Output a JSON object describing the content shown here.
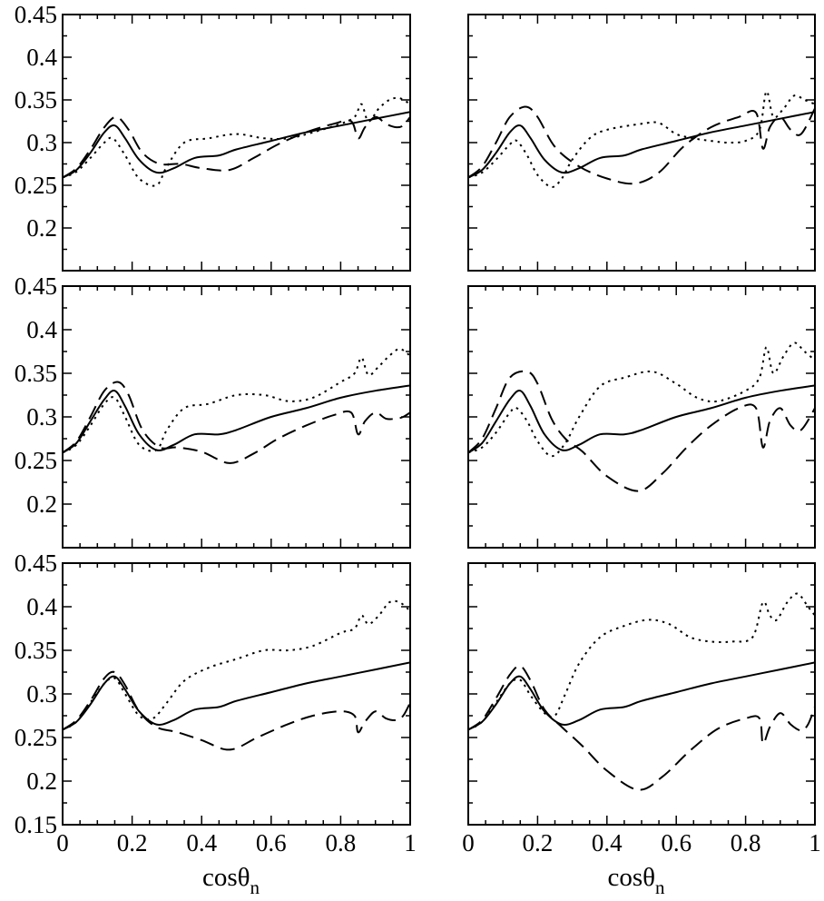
{
  "chart_data": {
    "type": "line",
    "layout": "3 rows x 2 columns",
    "xlabel": "cosθ",
    "xlabel_subscript": "n",
    "ylabel": "",
    "xlim": [
      0,
      1
    ],
    "ylim": [
      0.15,
      0.45
    ],
    "x_ticks": [
      0,
      0.2,
      0.4,
      0.6,
      0.8,
      1
    ],
    "x_tick_labels": [
      "0",
      "0.2",
      "0.4",
      "0.6",
      "0.8",
      "1"
    ],
    "y_ticks": [
      0.15,
      0.2,
      0.25,
      0.3,
      0.35,
      0.4,
      0.45
    ],
    "y_tick_labels": [
      "0.15",
      "0.2",
      "0.25",
      "0.3",
      "0.35",
      "0.4",
      "0.45"
    ],
    "line_styles": [
      "solid",
      "dashed",
      "dotted"
    ],
    "grid": false,
    "legend": "none",
    "panels": [
      {
        "series": [
          {
            "style": "solid",
            "x": [
              0,
              0.04,
              0.08,
              0.12,
              0.15,
              0.18,
              0.22,
              0.27,
              0.32,
              0.38,
              0.45,
              0.5,
              0.6,
              0.7,
              0.8,
              0.9,
              1.0
            ],
            "y": [
              0.259,
              0.268,
              0.288,
              0.312,
              0.32,
              0.305,
              0.28,
              0.265,
              0.27,
              0.282,
              0.285,
              0.292,
              0.302,
              0.312,
              0.32,
              0.328,
              0.336
            ]
          },
          {
            "style": "dashed",
            "x": [
              0,
              0.04,
              0.08,
              0.12,
              0.155,
              0.19,
              0.23,
              0.28,
              0.34,
              0.4,
              0.48,
              0.55,
              0.62,
              0.7,
              0.78,
              0.83,
              0.85,
              0.87,
              0.9,
              0.93,
              0.96,
              0.98,
              1.0
            ],
            "y": [
              0.259,
              0.27,
              0.292,
              0.318,
              0.33,
              0.315,
              0.288,
              0.275,
              0.275,
              0.27,
              0.268,
              0.282,
              0.298,
              0.312,
              0.322,
              0.325,
              0.305,
              0.318,
              0.33,
              0.322,
              0.318,
              0.32,
              0.33
            ]
          },
          {
            "style": "dotted",
            "x": [
              0,
              0.04,
              0.08,
              0.12,
              0.145,
              0.18,
              0.22,
              0.27,
              0.3,
              0.35,
              0.42,
              0.5,
              0.58,
              0.65,
              0.72,
              0.8,
              0.84,
              0.86,
              0.88,
              0.91,
              0.94,
              0.97,
              1.0
            ],
            "y": [
              0.259,
              0.266,
              0.282,
              0.3,
              0.305,
              0.285,
              0.258,
              0.25,
              0.272,
              0.3,
              0.305,
              0.31,
              0.305,
              0.305,
              0.312,
              0.322,
              0.33,
              0.345,
              0.325,
              0.34,
              0.35,
              0.352,
              0.345
            ]
          }
        ]
      },
      {
        "series": [
          {
            "style": "solid",
            "x": [
              0,
              0.04,
              0.08,
              0.12,
              0.15,
              0.18,
              0.22,
              0.27,
              0.32,
              0.38,
              0.45,
              0.5,
              0.6,
              0.7,
              0.8,
              0.9,
              1.0
            ],
            "y": [
              0.259,
              0.268,
              0.288,
              0.312,
              0.32,
              0.305,
              0.28,
              0.265,
              0.27,
              0.282,
              0.285,
              0.292,
              0.302,
              0.312,
              0.32,
              0.328,
              0.336
            ]
          },
          {
            "style": "dashed",
            "x": [
              0,
              0.04,
              0.08,
              0.12,
              0.165,
              0.2,
              0.25,
              0.32,
              0.4,
              0.48,
              0.55,
              0.62,
              0.7,
              0.78,
              0.83,
              0.85,
              0.87,
              0.9,
              0.93,
              0.96,
              1.0
            ],
            "y": [
              0.259,
              0.272,
              0.3,
              0.33,
              0.342,
              0.33,
              0.295,
              0.272,
              0.258,
              0.252,
              0.265,
              0.295,
              0.318,
              0.33,
              0.335,
              0.293,
              0.318,
              0.33,
              0.315,
              0.31,
              0.34
            ]
          },
          {
            "style": "dotted",
            "x": [
              0,
              0.04,
              0.08,
              0.12,
              0.14,
              0.17,
              0.2,
              0.24,
              0.27,
              0.3,
              0.35,
              0.4,
              0.5,
              0.55,
              0.6,
              0.65,
              0.7,
              0.75,
              0.8,
              0.84,
              0.86,
              0.88,
              0.91,
              0.94,
              0.97,
              1.0
            ],
            "y": [
              0.259,
              0.265,
              0.28,
              0.298,
              0.302,
              0.285,
              0.262,
              0.248,
              0.258,
              0.28,
              0.305,
              0.315,
              0.322,
              0.323,
              0.31,
              0.305,
              0.302,
              0.3,
              0.302,
              0.315,
              0.36,
              0.33,
              0.34,
              0.355,
              0.35,
              0.345
            ]
          }
        ]
      },
      {
        "series": [
          {
            "style": "solid",
            "x": [
              0,
              0.04,
              0.08,
              0.12,
              0.15,
              0.18,
              0.22,
              0.27,
              0.32,
              0.38,
              0.45,
              0.5,
              0.6,
              0.7,
              0.8,
              0.9,
              1.0
            ],
            "y": [
              0.259,
              0.27,
              0.295,
              0.32,
              0.33,
              0.312,
              0.28,
              0.262,
              0.268,
              0.28,
              0.28,
              0.285,
              0.3,
              0.31,
              0.322,
              0.33,
              0.336
            ]
          },
          {
            "style": "dashed",
            "x": [
              0,
              0.04,
              0.08,
              0.12,
              0.16,
              0.19,
              0.23,
              0.28,
              0.33,
              0.4,
              0.48,
              0.55,
              0.62,
              0.7,
              0.78,
              0.83,
              0.85,
              0.87,
              0.9,
              0.93,
              0.96,
              0.98,
              1.0
            ],
            "y": [
              0.259,
              0.272,
              0.3,
              0.33,
              0.34,
              0.325,
              0.285,
              0.265,
              0.265,
              0.26,
              0.247,
              0.258,
              0.275,
              0.29,
              0.302,
              0.305,
              0.28,
              0.295,
              0.305,
              0.298,
              0.298,
              0.3,
              0.305
            ]
          },
          {
            "style": "dotted",
            "x": [
              0,
              0.04,
              0.08,
              0.12,
              0.15,
              0.18,
              0.22,
              0.27,
              0.3,
              0.35,
              0.42,
              0.5,
              0.58,
              0.65,
              0.72,
              0.8,
              0.84,
              0.86,
              0.88,
              0.91,
              0.94,
              0.97,
              1.0
            ],
            "y": [
              0.259,
              0.268,
              0.29,
              0.315,
              0.322,
              0.3,
              0.268,
              0.262,
              0.285,
              0.31,
              0.315,
              0.325,
              0.325,
              0.318,
              0.322,
              0.34,
              0.35,
              0.368,
              0.348,
              0.358,
              0.37,
              0.378,
              0.37
            ]
          }
        ]
      },
      {
        "series": [
          {
            "style": "solid",
            "x": [
              0,
              0.04,
              0.08,
              0.12,
              0.15,
              0.18,
              0.22,
              0.27,
              0.32,
              0.38,
              0.45,
              0.5,
              0.6,
              0.7,
              0.8,
              0.9,
              1.0
            ],
            "y": [
              0.259,
              0.27,
              0.295,
              0.32,
              0.33,
              0.312,
              0.28,
              0.262,
              0.268,
              0.28,
              0.28,
              0.285,
              0.3,
              0.31,
              0.322,
              0.33,
              0.336
            ]
          },
          {
            "style": "dashed",
            "x": [
              0,
              0.04,
              0.08,
              0.12,
              0.17,
              0.2,
              0.24,
              0.28,
              0.33,
              0.4,
              0.49,
              0.56,
              0.63,
              0.7,
              0.78,
              0.83,
              0.85,
              0.87,
              0.9,
              0.93,
              0.96,
              1.0
            ],
            "y": [
              0.259,
              0.275,
              0.31,
              0.345,
              0.352,
              0.338,
              0.298,
              0.275,
              0.26,
              0.232,
              0.215,
              0.235,
              0.265,
              0.29,
              0.31,
              0.31,
              0.265,
              0.295,
              0.31,
              0.29,
              0.285,
              0.31
            ]
          },
          {
            "style": "dotted",
            "x": [
              0,
              0.04,
              0.08,
              0.12,
              0.14,
              0.17,
              0.2,
              0.24,
              0.28,
              0.32,
              0.38,
              0.45,
              0.53,
              0.6,
              0.66,
              0.72,
              0.8,
              0.84,
              0.86,
              0.88,
              0.91,
              0.94,
              0.97,
              1.0
            ],
            "y": [
              0.259,
              0.265,
              0.282,
              0.305,
              0.31,
              0.295,
              0.272,
              0.255,
              0.27,
              0.3,
              0.335,
              0.345,
              0.352,
              0.338,
              0.322,
              0.318,
              0.33,
              0.345,
              0.38,
              0.35,
              0.37,
              0.385,
              0.375,
              0.365
            ]
          }
        ]
      },
      {
        "series": [
          {
            "style": "solid",
            "x": [
              0,
              0.04,
              0.08,
              0.12,
              0.15,
              0.18,
              0.22,
              0.27,
              0.32,
              0.38,
              0.45,
              0.5,
              0.6,
              0.7,
              0.8,
              0.9,
              1.0
            ],
            "y": [
              0.259,
              0.268,
              0.288,
              0.312,
              0.32,
              0.305,
              0.28,
              0.265,
              0.27,
              0.282,
              0.285,
              0.292,
              0.302,
              0.312,
              0.32,
              0.328,
              0.336
            ]
          },
          {
            "style": "dashed",
            "x": [
              0,
              0.04,
              0.08,
              0.12,
              0.15,
              0.18,
              0.22,
              0.27,
              0.33,
              0.4,
              0.48,
              0.56,
              0.64,
              0.72,
              0.8,
              0.84,
              0.85,
              0.87,
              0.9,
              0.93,
              0.96,
              0.98,
              1.0
            ],
            "y": [
              0.259,
              0.27,
              0.292,
              0.318,
              0.325,
              0.31,
              0.28,
              0.262,
              0.256,
              0.247,
              0.236,
              0.25,
              0.264,
              0.275,
              0.28,
              0.275,
              0.256,
              0.268,
              0.28,
              0.272,
              0.27,
              0.275,
              0.29
            ]
          },
          {
            "style": "dotted",
            "x": [
              0,
              0.04,
              0.08,
              0.12,
              0.15,
              0.18,
              0.22,
              0.26,
              0.3,
              0.35,
              0.42,
              0.5,
              0.58,
              0.65,
              0.72,
              0.8,
              0.84,
              0.86,
              0.88,
              0.91,
              0.94,
              0.97,
              1.0
            ],
            "y": [
              0.259,
              0.268,
              0.29,
              0.312,
              0.318,
              0.3,
              0.275,
              0.272,
              0.29,
              0.315,
              0.33,
              0.34,
              0.35,
              0.35,
              0.355,
              0.37,
              0.375,
              0.39,
              0.38,
              0.39,
              0.405,
              0.405,
              0.395
            ]
          }
        ]
      },
      {
        "series": [
          {
            "style": "solid",
            "x": [
              0,
              0.04,
              0.08,
              0.12,
              0.15,
              0.18,
              0.22,
              0.27,
              0.32,
              0.38,
              0.45,
              0.5,
              0.6,
              0.7,
              0.8,
              0.9,
              1.0
            ],
            "y": [
              0.259,
              0.268,
              0.288,
              0.312,
              0.32,
              0.305,
              0.28,
              0.265,
              0.27,
              0.282,
              0.285,
              0.292,
              0.302,
              0.312,
              0.32,
              0.328,
              0.336
            ]
          },
          {
            "style": "dashed",
            "x": [
              0,
              0.04,
              0.08,
              0.12,
              0.15,
              0.18,
              0.22,
              0.27,
              0.33,
              0.4,
              0.49,
              0.56,
              0.64,
              0.72,
              0.8,
              0.84,
              0.85,
              0.87,
              0.9,
              0.93,
              0.96,
              0.98,
              1.0
            ],
            "y": [
              0.259,
              0.27,
              0.295,
              0.322,
              0.332,
              0.315,
              0.282,
              0.262,
              0.24,
              0.212,
              0.19,
              0.205,
              0.235,
              0.26,
              0.272,
              0.272,
              0.243,
              0.262,
              0.278,
              0.265,
              0.258,
              0.265,
              0.285
            ]
          },
          {
            "style": "dotted",
            "x": [
              0,
              0.04,
              0.08,
              0.12,
              0.15,
              0.18,
              0.22,
              0.25,
              0.28,
              0.32,
              0.38,
              0.45,
              0.52,
              0.58,
              0.64,
              0.7,
              0.76,
              0.82,
              0.85,
              0.87,
              0.89,
              0.92,
              0.95,
              0.98,
              1.0
            ],
            "y": [
              0.259,
              0.268,
              0.29,
              0.312,
              0.316,
              0.298,
              0.278,
              0.275,
              0.3,
              0.335,
              0.365,
              0.378,
              0.385,
              0.38,
              0.365,
              0.36,
              0.36,
              0.365,
              0.405,
              0.39,
              0.385,
              0.405,
              0.415,
              0.4,
              0.39
            ]
          }
        ]
      }
    ]
  }
}
